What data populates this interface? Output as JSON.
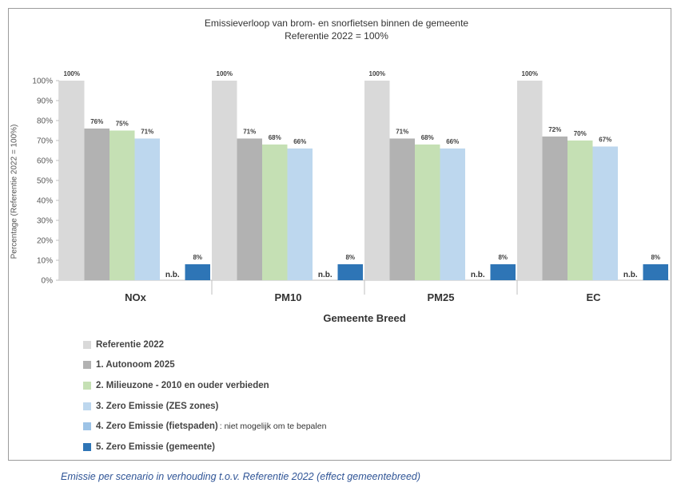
{
  "chart_data": {
    "type": "bar",
    "title": "Emissieverloop van brom- en snorfietsen binnen de gemeente",
    "subtitle": "Referentie 2022 = 100%",
    "ylabel": "Percentage (Referentie 2022 = 100%)",
    "xlabel": "Gemeente Breed",
    "categories": [
      "NOx",
      "PM10",
      "PM25",
      "EC"
    ],
    "ylim": [
      0,
      100
    ],
    "yticks": [
      "0%",
      "10%",
      "20%",
      "30%",
      "40%",
      "50%",
      "60%",
      "70%",
      "80%",
      "90%",
      "100%"
    ],
    "grid": false,
    "legend_position": "bottom-left",
    "na_label": "n.b.",
    "series": [
      {
        "name": "Referentie 2022",
        "color": "#d9d9d9",
        "values": [
          100,
          100,
          100,
          100
        ],
        "labels": [
          "100%",
          "100%",
          "100%",
          "100%"
        ]
      },
      {
        "name": "1. Autonoom 2025",
        "color": "#b2b2b2",
        "values": [
          76,
          71,
          71,
          72
        ],
        "labels": [
          "76%",
          "71%",
          "71%",
          "72%"
        ]
      },
      {
        "name": "2. Milieuzone - 2010 en ouder verbieden",
        "color": "#c5e0b4",
        "values": [
          75,
          68,
          68,
          70
        ],
        "labels": [
          "75%",
          "68%",
          "68%",
          "70%"
        ]
      },
      {
        "name": "3. Zero Emissie (ZES zones)",
        "color": "#bdd7ee",
        "values": [
          71,
          66,
          66,
          67
        ],
        "labels": [
          "71%",
          "66%",
          "66%",
          "67%"
        ]
      },
      {
        "name": "4. Zero Emissie (fietspaden)",
        "color": "#9dc3e6",
        "values": [
          null,
          null,
          null,
          null
        ],
        "labels": [
          "n.b.",
          "n.b.",
          "n.b.",
          "n.b."
        ],
        "note": ": niet mogelijk om te bepalen"
      },
      {
        "name": "5. Zero Emissie (gemeente)",
        "color": "#2e75b6",
        "values": [
          8,
          8,
          8,
          8
        ],
        "labels": [
          "8%",
          "8%",
          "8%",
          "8%"
        ]
      }
    ]
  },
  "caption": "Emissie per scenario in verhouding t.o.v. Referentie 2022 (effect gemeentebreed)"
}
